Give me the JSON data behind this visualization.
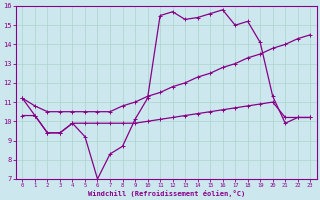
{
  "xlabel": "Windchill (Refroidissement éolien,°C)",
  "bg_color": "#cce8ee",
  "grid_color": "#aad4cc",
  "line_color": "#880088",
  "xlim": [
    -0.5,
    23.5
  ],
  "ylim": [
    7,
    16
  ],
  "xticks": [
    0,
    1,
    2,
    3,
    4,
    5,
    6,
    7,
    8,
    9,
    10,
    11,
    12,
    13,
    14,
    15,
    16,
    17,
    18,
    19,
    20,
    21,
    22,
    23
  ],
  "yticks": [
    7,
    8,
    9,
    10,
    11,
    12,
    13,
    14,
    15,
    16
  ],
  "series1_x": [
    0,
    1,
    2,
    3,
    4,
    5,
    6,
    7,
    8,
    9,
    10,
    11,
    12,
    13,
    14,
    15,
    16,
    17,
    18,
    19,
    20,
    21,
    22,
    23
  ],
  "series1_y": [
    11.2,
    10.3,
    9.4,
    9.4,
    9.9,
    9.2,
    7.0,
    8.3,
    8.7,
    10.1,
    11.2,
    15.5,
    15.7,
    15.3,
    15.4,
    15.6,
    15.8,
    15.0,
    15.2,
    14.1,
    11.3,
    9.9,
    10.2,
    10.2
  ],
  "series2_x": [
    0,
    1,
    2,
    3,
    4,
    5,
    6,
    7,
    8,
    9,
    10,
    11,
    12,
    13,
    14,
    15,
    16,
    17,
    18,
    19,
    20,
    21,
    22,
    23
  ],
  "series2_y": [
    10.3,
    10.3,
    9.4,
    9.4,
    9.9,
    9.9,
    9.9,
    9.9,
    9.9,
    9.9,
    10.0,
    10.1,
    10.2,
    10.3,
    10.4,
    10.5,
    10.6,
    10.7,
    10.8,
    10.9,
    11.0,
    10.2,
    10.2,
    10.2
  ],
  "series3_x": [
    0,
    1,
    2,
    3,
    4,
    5,
    6,
    7,
    8,
    9,
    10,
    11,
    12,
    13,
    14,
    15,
    16,
    17,
    18,
    19,
    20,
    21,
    22,
    23
  ],
  "series3_y": [
    11.2,
    10.8,
    10.5,
    10.5,
    10.5,
    10.5,
    10.5,
    10.5,
    10.8,
    11.0,
    11.3,
    11.5,
    11.8,
    12.0,
    12.3,
    12.5,
    12.8,
    13.0,
    13.3,
    13.5,
    13.8,
    14.0,
    14.3,
    14.5
  ]
}
